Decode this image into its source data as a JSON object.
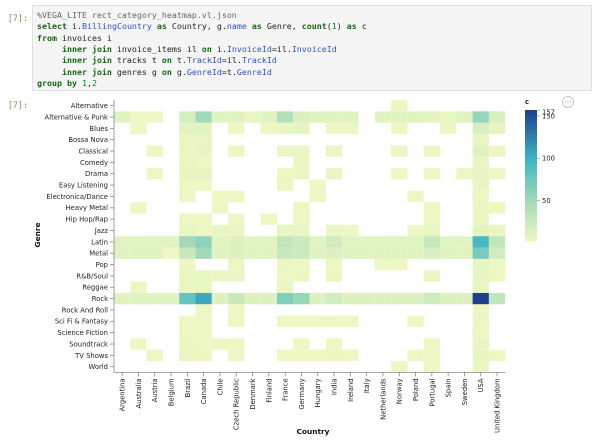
{
  "notebook": {
    "input_prompt": "[7]:",
    "output_prompt": "[7]:",
    "menu_glyph": "···",
    "code_lines": [
      [
        {
          "t": "%VEGA_LITE rect_category_heatmap.vl.json",
          "c": "magic"
        }
      ],
      [
        {
          "t": "select",
          "c": "kw"
        },
        {
          "t": " i.",
          "c": "var"
        },
        {
          "t": "BillingCountry",
          "c": "ident"
        },
        {
          "t": " as ",
          "c": "kw"
        },
        {
          "t": "Country, g.",
          "c": "var"
        },
        {
          "t": "name",
          "c": "ident"
        },
        {
          "t": " as ",
          "c": "kw"
        },
        {
          "t": "Genre, ",
          "c": "var"
        },
        {
          "t": "count",
          "c": "kw"
        },
        {
          "t": "(",
          "c": "var"
        },
        {
          "t": "1",
          "c": "num"
        },
        {
          "t": ") ",
          "c": "var"
        },
        {
          "t": "as",
          "c": "kw"
        },
        {
          "t": " c",
          "c": "var"
        }
      ],
      [
        {
          "t": "from",
          "c": "kw"
        },
        {
          "t": " invoices i",
          "c": "var"
        }
      ],
      [
        {
          "t": "     inner join",
          "c": "kw"
        },
        {
          "t": " invoice_items il ",
          "c": "var"
        },
        {
          "t": "on",
          "c": "kw"
        },
        {
          "t": " i.",
          "c": "var"
        },
        {
          "t": "InvoiceId",
          "c": "ident"
        },
        {
          "t": "=il.",
          "c": "var"
        },
        {
          "t": "InvoiceId",
          "c": "ident"
        }
      ],
      [
        {
          "t": "     inner join",
          "c": "kw"
        },
        {
          "t": " tracks t ",
          "c": "var"
        },
        {
          "t": "on",
          "c": "kw"
        },
        {
          "t": " t.",
          "c": "var"
        },
        {
          "t": "TrackId",
          "c": "ident"
        },
        {
          "t": "=il.",
          "c": "var"
        },
        {
          "t": "TrackId",
          "c": "ident"
        }
      ],
      [
        {
          "t": "     inner join",
          "c": "kw"
        },
        {
          "t": " genres g ",
          "c": "var"
        },
        {
          "t": "on",
          "c": "kw"
        },
        {
          "t": " g.",
          "c": "var"
        },
        {
          "t": "GenreId",
          "c": "ident"
        },
        {
          "t": "=t.",
          "c": "var"
        },
        {
          "t": "GenreId",
          "c": "ident"
        }
      ],
      [
        {
          "t": "group by",
          "c": "kw"
        },
        {
          "t": " ",
          "c": "var"
        },
        {
          "t": "1",
          "c": "num"
        },
        {
          "t": ",",
          "c": "var"
        },
        {
          "t": "2",
          "c": "num"
        }
      ]
    ]
  },
  "colors": {
    "low": "#eef8c4",
    "mid": "#a6dbb7",
    "high2": "#41b6c4",
    "high": "#1d3f8e",
    "code_magic": "#666666",
    "code_keyword": "#0f6a0f",
    "code_ident": "#2a55c6",
    "code_number": "#0a8a2a"
  },
  "chart_data": {
    "type": "heatmap",
    "xlabel": "Country",
    "ylabel": "Genre",
    "legend_title": "c",
    "legend_ticks": [
      50,
      100,
      150
    ],
    "color_domain": [
      1,
      157
    ],
    "x_categories": [
      "Argentina",
      "Australia",
      "Austria",
      "Belgium",
      "Brazil",
      "Canada",
      "Chile",
      "Czech Republic",
      "Denmark",
      "Finland",
      "France",
      "Germany",
      "Hungary",
      "India",
      "Ireland",
      "Italy",
      "Netherlands",
      "Norway",
      "Poland",
      "Portugal",
      "Spain",
      "Sweden",
      "USA",
      "United Kingdom"
    ],
    "y_categories": [
      "Alternative",
      "Alternative & Punk",
      "Blues",
      "Bossa Nova",
      "Classical",
      "Comedy",
      "Drama",
      "Easy Listening",
      "Electronica/Dance",
      "Heavy Metal",
      "Hip Hop/Rap",
      "Jazz",
      "Latin",
      "Metal",
      "Pop",
      "R&B/Soul",
      "Reggae",
      "Rock",
      "Rock And Roll",
      "Sci Fi & Fantasy",
      "Science Fiction",
      "Soundtrack",
      "TV Shows",
      "World"
    ],
    "values": {
      "Alternative": {
        "Norway": 2
      },
      "Alternative & Punk": {
        "Argentina": 9,
        "Australia": 2,
        "Austria": 2,
        "Brazil": 17,
        "Canada": 50,
        "Chile": 9,
        "Czech Republic": 9,
        "Denmark": 5,
        "Finland": 9,
        "France": 39,
        "Germany": 14,
        "Hungary": 9,
        "India": 9,
        "Ireland": 9,
        "Netherlands": 9,
        "Norway": 9,
        "Poland": 9,
        "Portugal": 8,
        "Spain": 5,
        "Sweden": 9,
        "USA": 56,
        "United Kingdom": 15
      },
      "Blues": {
        "Australia": 2,
        "Brazil": 8,
        "Canada": 9,
        "Czech Republic": 2,
        "Finland": 2,
        "France": 5,
        "Germany": 7,
        "India": 2,
        "Ireland": 2,
        "Norway": 2,
        "Spain": 2,
        "USA": 16,
        "United Kingdom": 7
      },
      "Bossa Nova": {
        "Brazil": 4,
        "Canada": 4,
        "USA": 4
      },
      "Classical": {
        "Austria": 2,
        "Brazil": 4,
        "Canada": 6,
        "Czech Republic": 2,
        "France": 4,
        "Germany": 3,
        "India": 3,
        "Norway": 3,
        "Portugal": 2,
        "USA": 10,
        "United Kingdom": 2
      },
      "Comedy": {
        "Brazil": 4,
        "Canada": 2,
        "Germany": 3,
        "USA": 4
      },
      "Drama": {
        "Austria": 2,
        "Brazil": 6,
        "Canada": 6,
        "France": 2,
        "Germany": 4,
        "India": 4,
        "Norway": 2,
        "Portugal": 2,
        "Sweden": 2,
        "USA": 7,
        "United Kingdom": 2
      },
      "Easy Listening": {
        "Brazil": 2,
        "Canada": 2,
        "France": 3,
        "Hungary": 2,
        "USA": 4
      },
      "Electronica/Dance": {
        "Brazil": 2,
        "Chile": 2,
        "Czech Republic": 2,
        "Hungary": 2,
        "Poland": 2,
        "USA": 2
      },
      "Heavy Metal": {
        "Australia": 2,
        "Chile": 2,
        "Germany": 2,
        "Portugal": 2,
        "USA": 3,
        "United Kingdom": 2
      },
      "Hip Hop/Rap": {
        "Brazil": 2,
        "Canada": 2,
        "Czech Republic": 2,
        "Finland": 2,
        "Germany": 2,
        "Portugal": 2,
        "USA": 3
      },
      "Jazz": {
        "Brazil": 4,
        "Canada": 2,
        "Chile": 5,
        "Czech Republic": 4,
        "France": 4,
        "Germany": 4,
        "India": 3,
        "Ireland": 2,
        "Poland": 2,
        "Portugal": 4,
        "USA": 8,
        "United Kingdom": 4
      },
      "Latin": {
        "Argentina": 9,
        "Australia": 9,
        "Austria": 9,
        "Belgium": 9,
        "Brazil": 50,
        "Canada": 60,
        "Chile": 9,
        "Czech Republic": 12,
        "Denmark": 9,
        "Finland": 9,
        "France": 30,
        "Germany": 24,
        "Hungary": 9,
        "India": 20,
        "Ireland": 9,
        "Italy": 9,
        "Netherlands": 9,
        "Norway": 9,
        "Poland": 9,
        "Portugal": 25,
        "Spain": 9,
        "Sweden": 9,
        "USA": 95,
        "United Kingdom": 30
      },
      "Metal": {
        "Argentina": 9,
        "Australia": 9,
        "Austria": 9,
        "Belgium": 2,
        "Brazil": 25,
        "Canada": 50,
        "Chile": 9,
        "Czech Republic": 12,
        "Denmark": 9,
        "Finland": 9,
        "France": 25,
        "Germany": 24,
        "Hungary": 9,
        "India": 12,
        "Ireland": 9,
        "Italy": 9,
        "Netherlands": 9,
        "Norway": 9,
        "Poland": 9,
        "Portugal": 14,
        "Spain": 9,
        "Sweden": 9,
        "USA": 70,
        "United Kingdom": 20
      },
      "Pop": {
        "Brazil": 2,
        "Czech Republic": 3,
        "France": 3,
        "Germany": 2,
        "India": 2,
        "Netherlands": 2,
        "Norway": 2,
        "USA": 6,
        "United Kingdom": 2
      },
      "R&B/Soul": {
        "Brazil": 5,
        "Canada": 5,
        "Chile": 3,
        "Czech Republic": 4,
        "France": 2,
        "Germany": 3,
        "India": 3,
        "Portugal": 3,
        "USA": 6,
        "United Kingdom": 2
      },
      "Reggae": {
        "Australia": 2,
        "Brazil": 5,
        "Canada": 3,
        "France": 3,
        "USA": 5
      },
      "Rock": {
        "Argentina": 9,
        "Australia": 9,
        "Austria": 9,
        "Belgium": 9,
        "Brazil": 80,
        "Canada": 105,
        "Chile": 12,
        "Czech Republic": 25,
        "Denmark": 12,
        "Finland": 12,
        "France": 65,
        "Germany": 55,
        "Hungary": 12,
        "India": 20,
        "Ireland": 12,
        "Italy": 12,
        "Netherlands": 12,
        "Norway": 12,
        "Poland": 12,
        "Portugal": 22,
        "Spain": 12,
        "Sweden": 12,
        "USA": 157,
        "United Kingdom": 30
      },
      "Rock And Roll": {
        "Canada": 2,
        "Czech Republic": 2,
        "USA": 2
      },
      "Sci Fi & Fantasy": {
        "Brazil": 2,
        "Canada": 2,
        "Czech Republic": 2,
        "France": 2,
        "Germany": 2,
        "Hungary": 2,
        "India": 2,
        "Ireland": 2,
        "Poland": 2,
        "USA": 3
      },
      "Science Fiction": {
        "Brazil": 2,
        "Canada": 2,
        "USA": 2
      },
      "Soundtrack": {
        "Australia": 2,
        "Brazil": 3,
        "Canada": 2,
        "Chile": 2,
        "Czech Republic": 2,
        "Germany": 2,
        "India": 2,
        "Portugal": 2,
        "USA": 4
      },
      "TV Shows": {
        "Austria": 2,
        "Brazil": 4,
        "Canada": 3,
        "Czech Republic": 2,
        "France": 2,
        "Germany": 2,
        "Hungary": 2,
        "India": 3,
        "Ireland": 2,
        "Poland": 2,
        "Portugal": 2,
        "USA": 6,
        "United Kingdom": 2
      },
      "World": {
        "Norway": 2,
        "Portugal": 2,
        "USA": 3
      }
    }
  }
}
